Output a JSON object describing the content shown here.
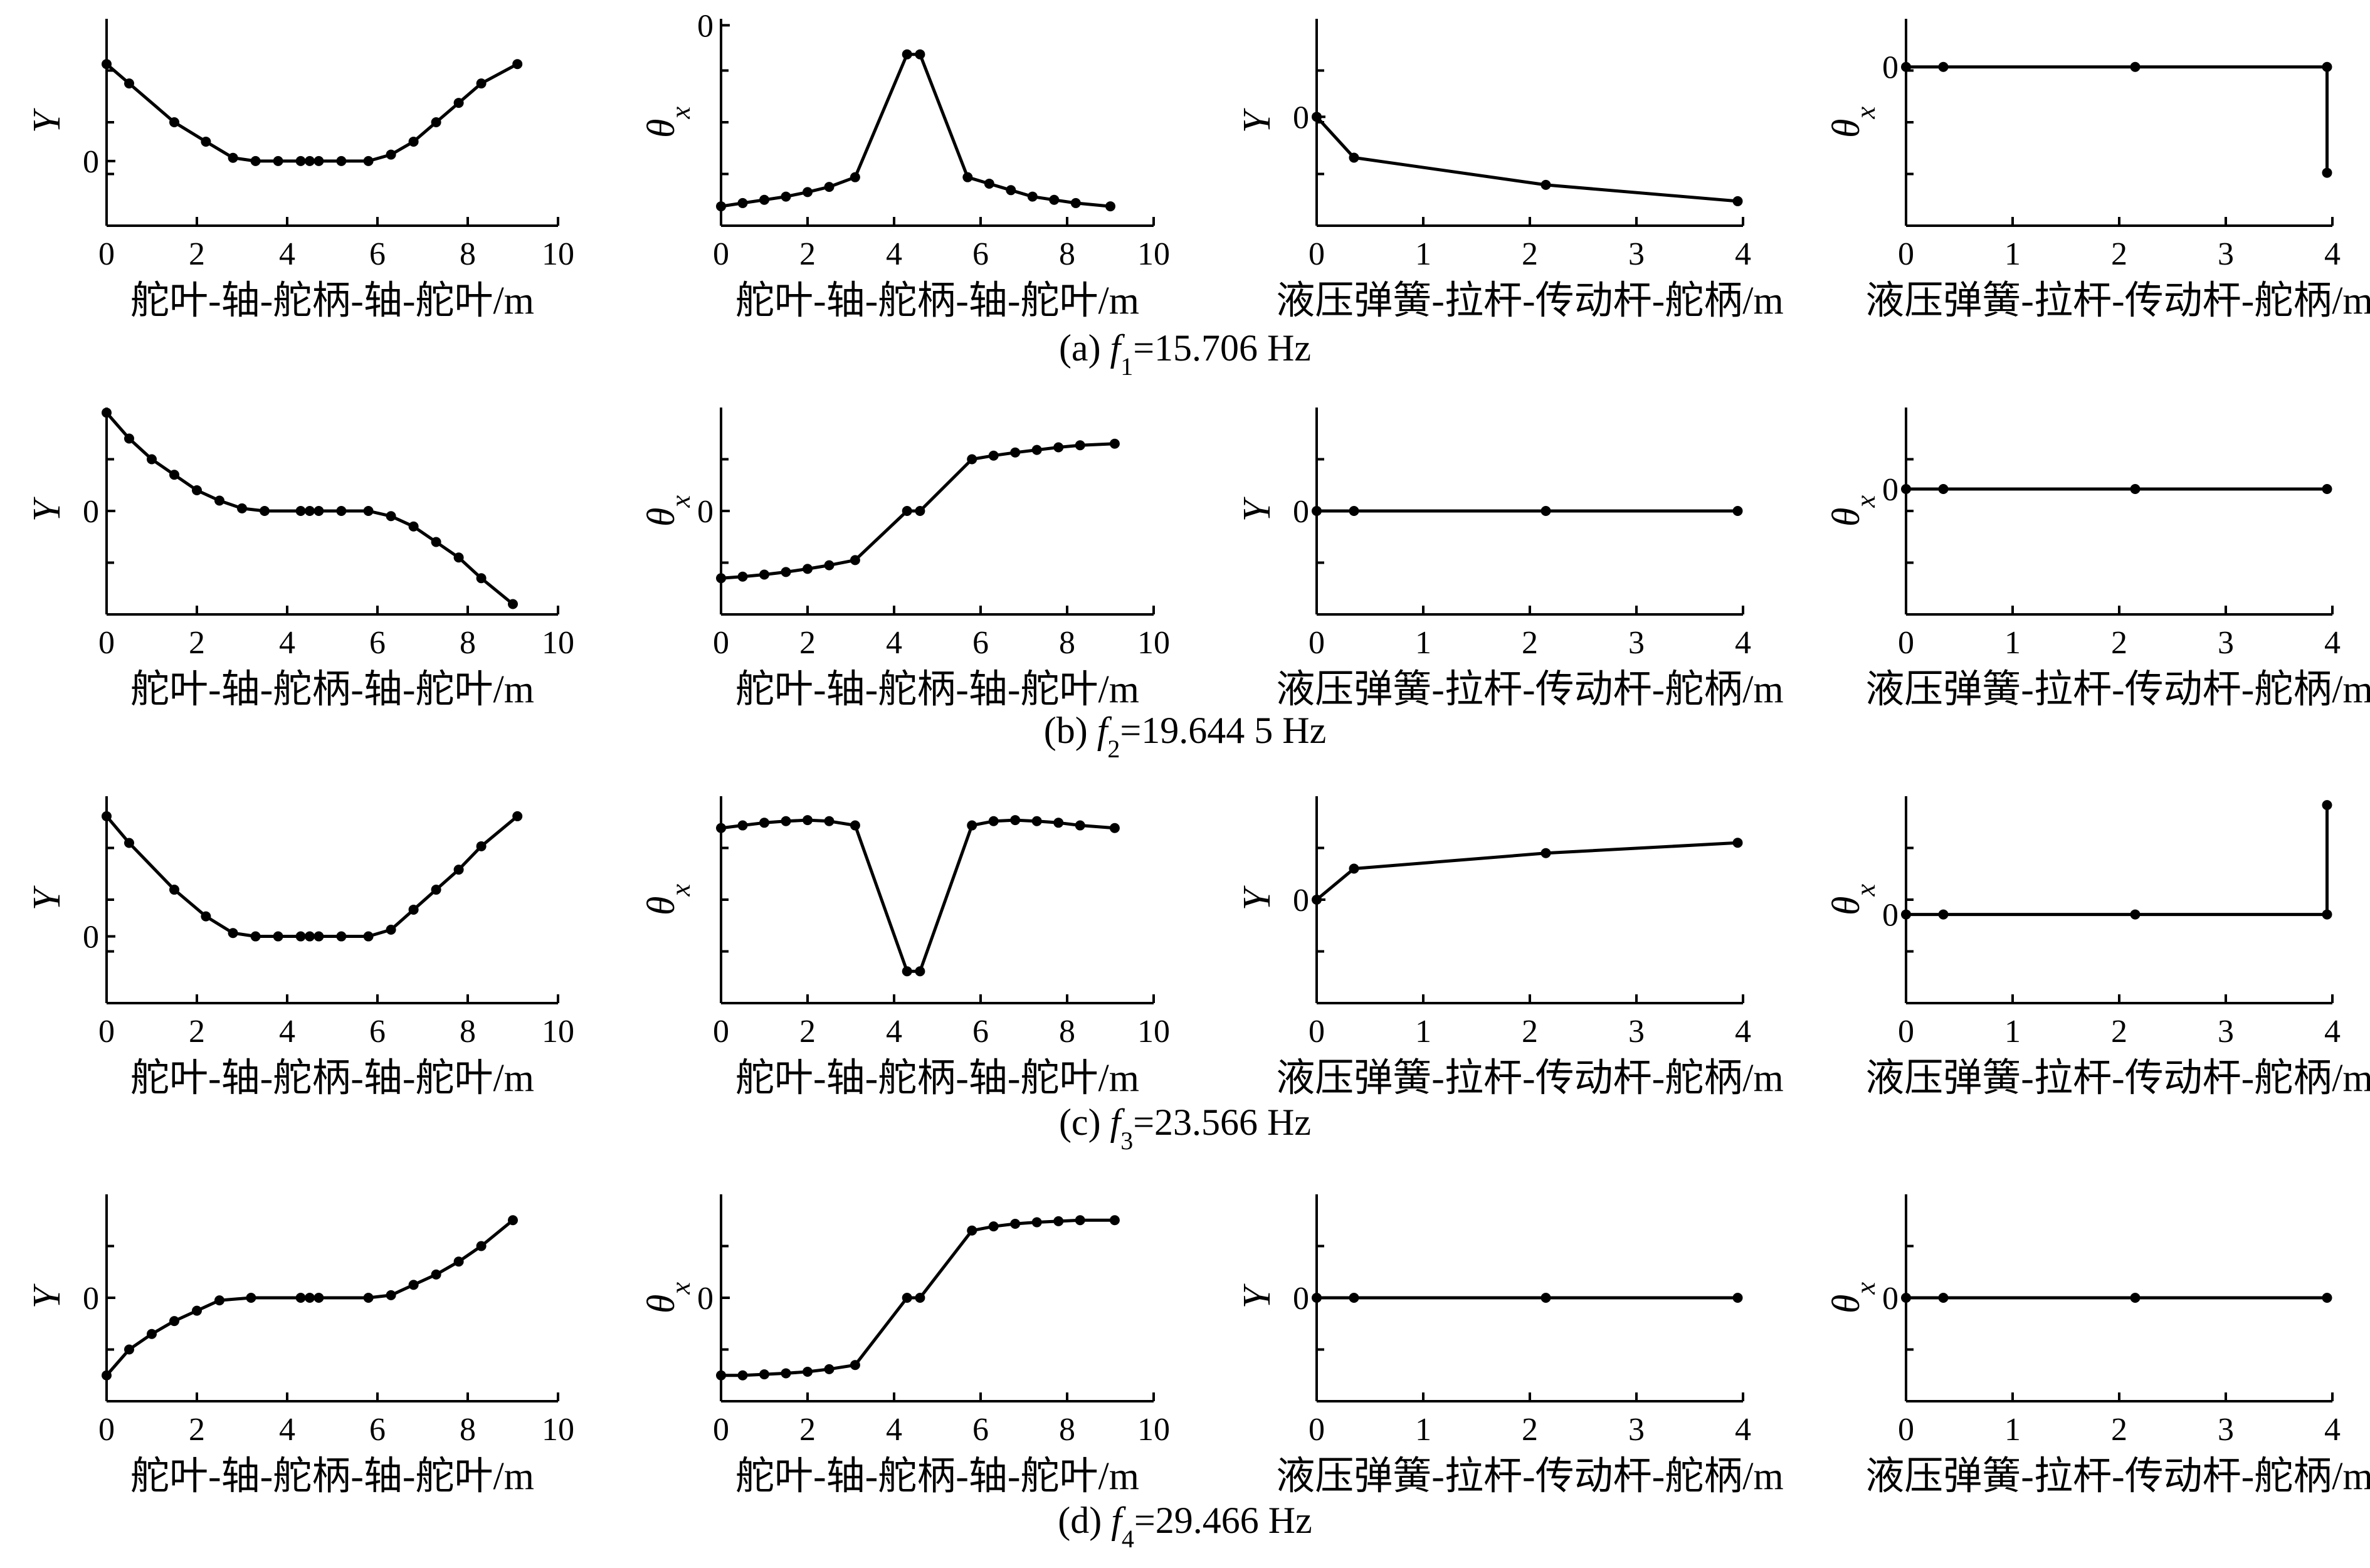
{
  "captions": [
    {
      "prefix": "(a) ",
      "var": "f",
      "sub": "1",
      "rest": "=15.706 Hz"
    },
    {
      "prefix": "(b) ",
      "var": "f",
      "sub": "2",
      "rest": "=19.644 5 Hz"
    },
    {
      "prefix": "(c) ",
      "var": "f",
      "sub": "3",
      "rest": "=23.566 Hz"
    },
    {
      "prefix": "(d) ",
      "var": "f",
      "sub": "4",
      "rest": "=29.466 Hz"
    }
  ],
  "chart_data": [
    {
      "type": "line",
      "row": 0,
      "col": 0,
      "xlabel": "舵叶-轴-舵柄-轴-舵叶/m",
      "ylabel": "Y",
      "xlim": [
        0,
        10
      ],
      "ylim": [
        -1.0,
        2.2
      ],
      "xticks": [
        0,
        2,
        4,
        6,
        8,
        10
      ],
      "yticks": [
        0
      ],
      "x": [
        0,
        0.5,
        1.5,
        2.2,
        2.8,
        3.3,
        3.8,
        4.3,
        4.5,
        4.7,
        5.2,
        5.8,
        6.3,
        6.8,
        7.3,
        7.8,
        8.3,
        9.1
      ],
      "y": [
        1.5,
        1.2,
        0.6,
        0.3,
        0.05,
        0,
        0,
        0,
        0,
        0,
        0,
        0,
        0.1,
        0.3,
        0.6,
        0.9,
        1.2,
        1.5
      ]
    },
    {
      "type": "line",
      "row": 0,
      "col": 1,
      "xlabel": "舵叶-轴-舵柄-轴-舵叶/m",
      "ylabel": "θx",
      "xlim": [
        0,
        10
      ],
      "ylim": [
        -3.1,
        0.1
      ],
      "xticks": [
        0,
        2,
        4,
        6,
        8,
        10
      ],
      "yticks": [
        0
      ],
      "x": [
        0,
        0.5,
        1,
        1.5,
        2,
        2.5,
        3.1,
        4.3,
        4.6,
        5.7,
        6.2,
        6.7,
        7.2,
        7.7,
        8.2,
        9
      ],
      "y": [
        -2.8,
        -2.75,
        -2.7,
        -2.65,
        -2.58,
        -2.5,
        -2.35,
        -0.45,
        -0.45,
        -2.35,
        -2.45,
        -2.55,
        -2.65,
        -2.7,
        -2.75,
        -2.8
      ]
    },
    {
      "type": "line",
      "row": 0,
      "col": 2,
      "xlabel": "液压弹簧-拉杆-传动杆-舵柄/m",
      "ylabel": "Y",
      "xlim": [
        0,
        4
      ],
      "ylim": [
        -2.0,
        1.8
      ],
      "xticks": [
        0,
        1,
        2,
        3,
        4
      ],
      "yticks": [
        0
      ],
      "x": [
        0,
        0.35,
        2.15,
        3.95
      ],
      "y": [
        0,
        -0.75,
        -1.25,
        -1.55
      ]
    },
    {
      "type": "line",
      "row": 0,
      "col": 3,
      "xlabel": "液压弹簧-拉杆-传动杆-舵柄/m",
      "ylabel": "θx",
      "xlim": [
        0,
        4
      ],
      "ylim": [
        -3.3,
        1.0
      ],
      "xticks": [
        0,
        1,
        2,
        3,
        4
      ],
      "yticks": [
        0
      ],
      "x": [
        0,
        0.35,
        2.15,
        3.95,
        3.95
      ],
      "y": [
        0,
        0,
        0,
        0,
        -2.2
      ]
    },
    {
      "type": "line",
      "row": 1,
      "col": 0,
      "xlabel": "舵叶-轴-舵柄-轴-舵叶/m",
      "ylabel": "Y",
      "xlim": [
        0,
        10
      ],
      "ylim": [
        -2.0,
        2.0
      ],
      "xticks": [
        0,
        2,
        4,
        6,
        8,
        10
      ],
      "yticks": [
        0
      ],
      "x": [
        0,
        0.5,
        1,
        1.5,
        2,
        2.5,
        3,
        3.5,
        4.3,
        4.5,
        4.7,
        5.2,
        5.8,
        6.3,
        6.8,
        7.3,
        7.8,
        8.3,
        9
      ],
      "y": [
        1.9,
        1.4,
        1.0,
        0.7,
        0.4,
        0.2,
        0.05,
        0,
        0,
        0,
        0,
        0,
        0,
        -0.1,
        -0.3,
        -0.6,
        -0.9,
        -1.3,
        -1.8
      ]
    },
    {
      "type": "line",
      "row": 1,
      "col": 1,
      "xlabel": "舵叶-轴-舵柄-轴-舵叶/m",
      "ylabel": "θx",
      "xlim": [
        0,
        10
      ],
      "ylim": [
        -2.0,
        2.0
      ],
      "xticks": [
        0,
        2,
        4,
        6,
        8,
        10
      ],
      "yticks": [
        0
      ],
      "x": [
        0,
        0.5,
        1,
        1.5,
        2,
        2.5,
        3.1,
        4.3,
        4.6,
        5.8,
        6.3,
        6.8,
        7.3,
        7.8,
        8.3,
        9.1
      ],
      "y": [
        -1.3,
        -1.27,
        -1.23,
        -1.18,
        -1.12,
        -1.05,
        -0.95,
        0,
        0,
        1.0,
        1.07,
        1.13,
        1.18,
        1.23,
        1.27,
        1.3
      ]
    },
    {
      "type": "line",
      "row": 1,
      "col": 2,
      "xlabel": "液压弹簧-拉杆-传动杆-舵柄/m",
      "ylabel": "Y",
      "xlim": [
        0,
        4
      ],
      "ylim": [
        -2.0,
        2.0
      ],
      "xticks": [
        0,
        1,
        2,
        3,
        4
      ],
      "yticks": [
        0
      ],
      "x": [
        0,
        0.35,
        2.15,
        3.95
      ],
      "y": [
        0,
        0,
        0,
        0
      ]
    },
    {
      "type": "line",
      "row": 1,
      "col": 3,
      "xlabel": "液压弹簧-拉杆-传动杆-舵柄/m",
      "ylabel": "θx",
      "xlim": [
        0,
        4
      ],
      "ylim": [
        -2.0,
        1.3
      ],
      "xticks": [
        0,
        1,
        2,
        3,
        4
      ],
      "yticks": [
        0
      ],
      "x": [
        0,
        0.35,
        2.15,
        3.95
      ],
      "y": [
        0,
        0,
        0,
        0
      ]
    },
    {
      "type": "line",
      "row": 2,
      "col": 0,
      "xlabel": "舵叶-轴-舵柄-轴-舵叶/m",
      "ylabel": "Y",
      "xlim": [
        0,
        10
      ],
      "ylim": [
        -1.0,
        2.1
      ],
      "xticks": [
        0,
        2,
        4,
        6,
        8,
        10
      ],
      "yticks": [
        0
      ],
      "x": [
        0,
        0.5,
        1.5,
        2.2,
        2.8,
        3.3,
        3.8,
        4.3,
        4.5,
        4.7,
        5.2,
        5.8,
        6.3,
        6.8,
        7.3,
        7.8,
        8.3,
        9.1
      ],
      "y": [
        1.8,
        1.4,
        0.7,
        0.3,
        0.05,
        0,
        0,
        0,
        0,
        0,
        0,
        0,
        0.1,
        0.4,
        0.7,
        1.0,
        1.35,
        1.8
      ]
    },
    {
      "type": "line",
      "row": 2,
      "col": 1,
      "xlabel": "舵叶-轴-舵柄-轴-舵叶/m",
      "ylabel": "θx",
      "xlim": [
        0,
        10
      ],
      "ylim": [
        -2.0,
        1.9
      ],
      "xticks": [
        0,
        2,
        4,
        6,
        8,
        10
      ],
      "yticks": [],
      "x": [
        0,
        0.5,
        1,
        1.5,
        2,
        2.5,
        3.1,
        4.3,
        4.6,
        5.8,
        6.3,
        6.8,
        7.3,
        7.8,
        8.3,
        9.1
      ],
      "y": [
        1.3,
        1.35,
        1.4,
        1.43,
        1.45,
        1.43,
        1.35,
        -1.4,
        -1.4,
        1.35,
        1.43,
        1.45,
        1.43,
        1.4,
        1.35,
        1.3
      ]
    },
    {
      "type": "line",
      "row": 2,
      "col": 2,
      "xlabel": "液压弹簧-拉杆-传动杆-舵柄/m",
      "ylabel": "Y",
      "xlim": [
        0,
        4
      ],
      "ylim": [
        -2.0,
        2.0
      ],
      "xticks": [
        0,
        1,
        2,
        3,
        4
      ],
      "yticks": [
        0
      ],
      "x": [
        0,
        0.35,
        2.15,
        3.95
      ],
      "y": [
        0,
        0.6,
        0.9,
        1.1
      ]
    },
    {
      "type": "line",
      "row": 2,
      "col": 3,
      "xlabel": "液压弹簧-拉杆-传动杆-舵柄/m",
      "ylabel": "θx",
      "xlim": [
        0,
        4
      ],
      "ylim": [
        -1.5,
        2.0
      ],
      "xticks": [
        0,
        1,
        2,
        3,
        4
      ],
      "yticks": [
        0
      ],
      "x": [
        0,
        0.35,
        2.15,
        3.95,
        3.95
      ],
      "y": [
        0,
        0,
        0,
        0,
        1.85
      ]
    },
    {
      "type": "line",
      "row": 3,
      "col": 0,
      "xlabel": "舵叶-轴-舵柄-轴-舵叶/m",
      "ylabel": "Y",
      "xlim": [
        0,
        10
      ],
      "ylim": [
        -2.0,
        2.0
      ],
      "xticks": [
        0,
        2,
        4,
        6,
        8,
        10
      ],
      "yticks": [
        0
      ],
      "x": [
        0,
        0.5,
        1,
        1.5,
        2,
        2.5,
        3.2,
        4.3,
        4.5,
        4.7,
        5.8,
        6.3,
        6.8,
        7.3,
        7.8,
        8.3,
        9
      ],
      "y": [
        -1.5,
        -1.0,
        -0.7,
        -0.45,
        -0.25,
        -0.05,
        0,
        0,
        0,
        0,
        0,
        0.05,
        0.25,
        0.45,
        0.7,
        1.0,
        1.5
      ]
    },
    {
      "type": "line",
      "row": 3,
      "col": 1,
      "xlabel": "舵叶-轴-舵柄-轴-舵叶/m",
      "ylabel": "θx",
      "xlim": [
        0,
        10
      ],
      "ylim": [
        -2.0,
        2.0
      ],
      "xticks": [
        0,
        2,
        4,
        6,
        8,
        10
      ],
      "yticks": [
        0
      ],
      "x": [
        0,
        0.5,
        1,
        1.5,
        2,
        2.5,
        3.1,
        4.3,
        4.6,
        5.8,
        6.3,
        6.8,
        7.3,
        7.8,
        8.3,
        9.1
      ],
      "y": [
        -1.5,
        -1.5,
        -1.48,
        -1.46,
        -1.43,
        -1.38,
        -1.3,
        0,
        0,
        1.3,
        1.38,
        1.43,
        1.46,
        1.48,
        1.5,
        1.5
      ]
    },
    {
      "type": "line",
      "row": 3,
      "col": 2,
      "xlabel": "液压弹簧-拉杆-传动杆-舵柄/m",
      "ylabel": "Y",
      "xlim": [
        0,
        4
      ],
      "ylim": [
        -2.0,
        2.0
      ],
      "xticks": [
        0,
        1,
        2,
        3,
        4
      ],
      "yticks": [
        0
      ],
      "x": [
        0,
        0.35,
        2.15,
        3.95
      ],
      "y": [
        0,
        0,
        0,
        0
      ]
    },
    {
      "type": "line",
      "row": 3,
      "col": 3,
      "xlabel": "液压弹簧-拉杆-传动杆-舵柄/m",
      "ylabel": "θx",
      "xlim": [
        0,
        4
      ],
      "ylim": [
        -2.0,
        2.0
      ],
      "xticks": [
        0,
        1,
        2,
        3,
        4
      ],
      "yticks": [
        0
      ],
      "x": [
        0,
        0.35,
        2.15,
        3.95
      ],
      "y": [
        0,
        0,
        0,
        0
      ]
    }
  ]
}
